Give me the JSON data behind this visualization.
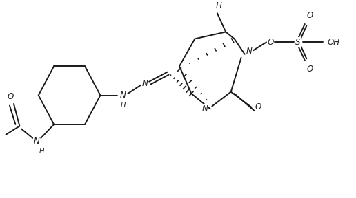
{
  "bg_color": "#ffffff",
  "line_color": "#1a1a1a",
  "lw": 1.4,
  "fs": 8.5,
  "fig_width": 5.16,
  "fig_height": 2.88,
  "dpi": 100,
  "xlim": [
    0,
    10.32
  ],
  "ylim": [
    0,
    5.76
  ]
}
